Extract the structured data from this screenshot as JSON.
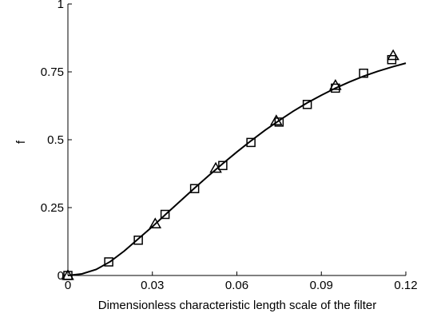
{
  "chart_data": {
    "type": "scatter",
    "title": "",
    "xlabel": "Dimensionless characteristic length scale of the filter",
    "ylabel": "f",
    "xlim": [
      0,
      0.12
    ],
    "ylim": [
      0,
      1
    ],
    "x_ticks": [
      0,
      0.03,
      0.06,
      0.09,
      0.12
    ],
    "x_tick_labels": [
      "0",
      "0.03",
      "0.06",
      "0.09",
      "0.12"
    ],
    "y_ticks": [
      0,
      0.25,
      0.5,
      0.75,
      1
    ],
    "y_tick_labels": [
      "0",
      "0.25",
      "0.5",
      "0.75",
      "1"
    ],
    "grid": false,
    "legend": "none",
    "series": [
      {
        "marker": "square",
        "x": [
          0.0,
          0.0145,
          0.025,
          0.0345,
          0.045,
          0.055,
          0.065,
          0.075,
          0.085,
          0.095,
          0.105,
          0.115
        ],
        "y": [
          0.0,
          0.05,
          0.13,
          0.225,
          0.32,
          0.405,
          0.49,
          0.565,
          0.63,
          0.69,
          0.745,
          0.795
        ]
      },
      {
        "marker": "triangle",
        "x": [
          0.0,
          0.031,
          0.0525,
          0.074,
          0.095,
          0.1155
        ],
        "y": [
          0.0,
          0.19,
          0.395,
          0.57,
          0.7,
          0.81
        ]
      },
      {
        "marker": "line",
        "x": [
          0,
          0.005,
          0.01,
          0.015,
          0.02,
          0.025,
          0.03,
          0.035,
          0.04,
          0.045,
          0.05,
          0.055,
          0.06,
          0.065,
          0.07,
          0.075,
          0.08,
          0.085,
          0.09,
          0.095,
          0.1,
          0.105,
          0.11,
          0.115,
          0.12
        ],
        "y": [
          0,
          0.006,
          0.022,
          0.051,
          0.09,
          0.135,
          0.18,
          0.228,
          0.275,
          0.322,
          0.368,
          0.412,
          0.455,
          0.496,
          0.535,
          0.571,
          0.605,
          0.636,
          0.664,
          0.69,
          0.713,
          0.734,
          0.752,
          0.768,
          0.782
        ]
      }
    ]
  }
}
